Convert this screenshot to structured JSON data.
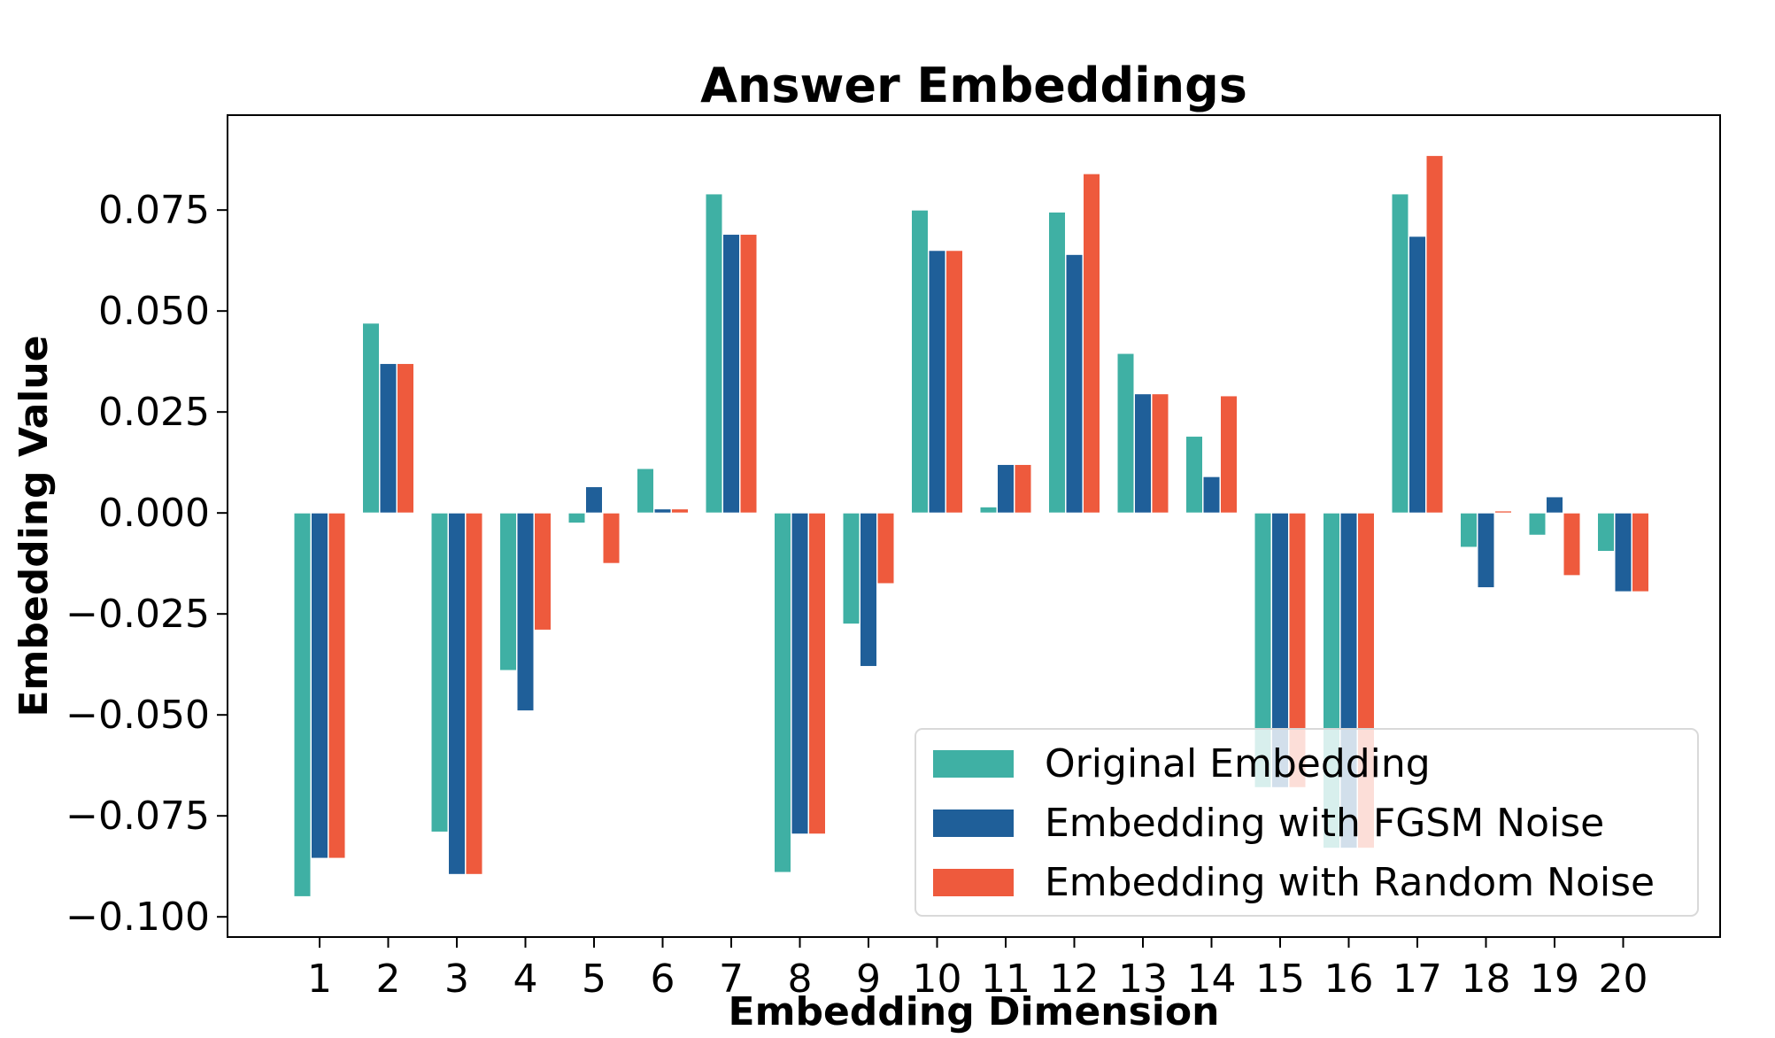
{
  "chart_data": {
    "type": "bar",
    "title": "Answer Embeddings",
    "xlabel": "Embedding Dimension",
    "ylabel": "Embedding Value",
    "categories": [
      "1",
      "2",
      "3",
      "4",
      "5",
      "6",
      "7",
      "8",
      "9",
      "10",
      "11",
      "12",
      "13",
      "14",
      "15",
      "16",
      "17",
      "18",
      "19",
      "20"
    ],
    "series": [
      {
        "name": "Original Embedding",
        "color": "#3FB0A4",
        "values": [
          -0.095,
          0.047,
          -0.079,
          -0.039,
          -0.0025,
          0.011,
          0.079,
          -0.089,
          -0.0275,
          0.075,
          0.0015,
          0.0745,
          0.0395,
          0.019,
          -0.068,
          -0.083,
          0.079,
          -0.0085,
          -0.0055,
          -0.0095
        ]
      },
      {
        "name": "Embedding with FGSM Noise",
        "color": "#1F5F99",
        "values": [
          -0.0855,
          0.037,
          -0.0895,
          -0.049,
          0.0065,
          0.001,
          0.069,
          -0.0795,
          -0.038,
          0.065,
          0.012,
          0.064,
          0.0295,
          0.009,
          -0.068,
          -0.083,
          0.0685,
          -0.0185,
          0.004,
          -0.0195
        ]
      },
      {
        "name": "Embedding with Random Noise",
        "color": "#EE5A3D",
        "values": [
          -0.0855,
          0.037,
          -0.0895,
          -0.029,
          -0.0125,
          0.001,
          0.069,
          -0.0795,
          -0.0175,
          0.065,
          0.012,
          0.084,
          0.0295,
          0.029,
          -0.068,
          -0.083,
          0.0885,
          0.0005,
          -0.0155,
          -0.0195
        ]
      }
    ],
    "ylim": [
      -0.105,
      0.0985
    ],
    "yticks": [
      0.075,
      0.05,
      0.025,
      0.0,
      -0.025,
      -0.05,
      -0.075,
      -0.1
    ],
    "ytick_labels": [
      "0.075",
      "0.050",
      "0.025",
      "0.000",
      "−0.025",
      "−0.050",
      "−0.075",
      "−0.100"
    ],
    "grid": false,
    "legend_position": "lower-right"
  }
}
